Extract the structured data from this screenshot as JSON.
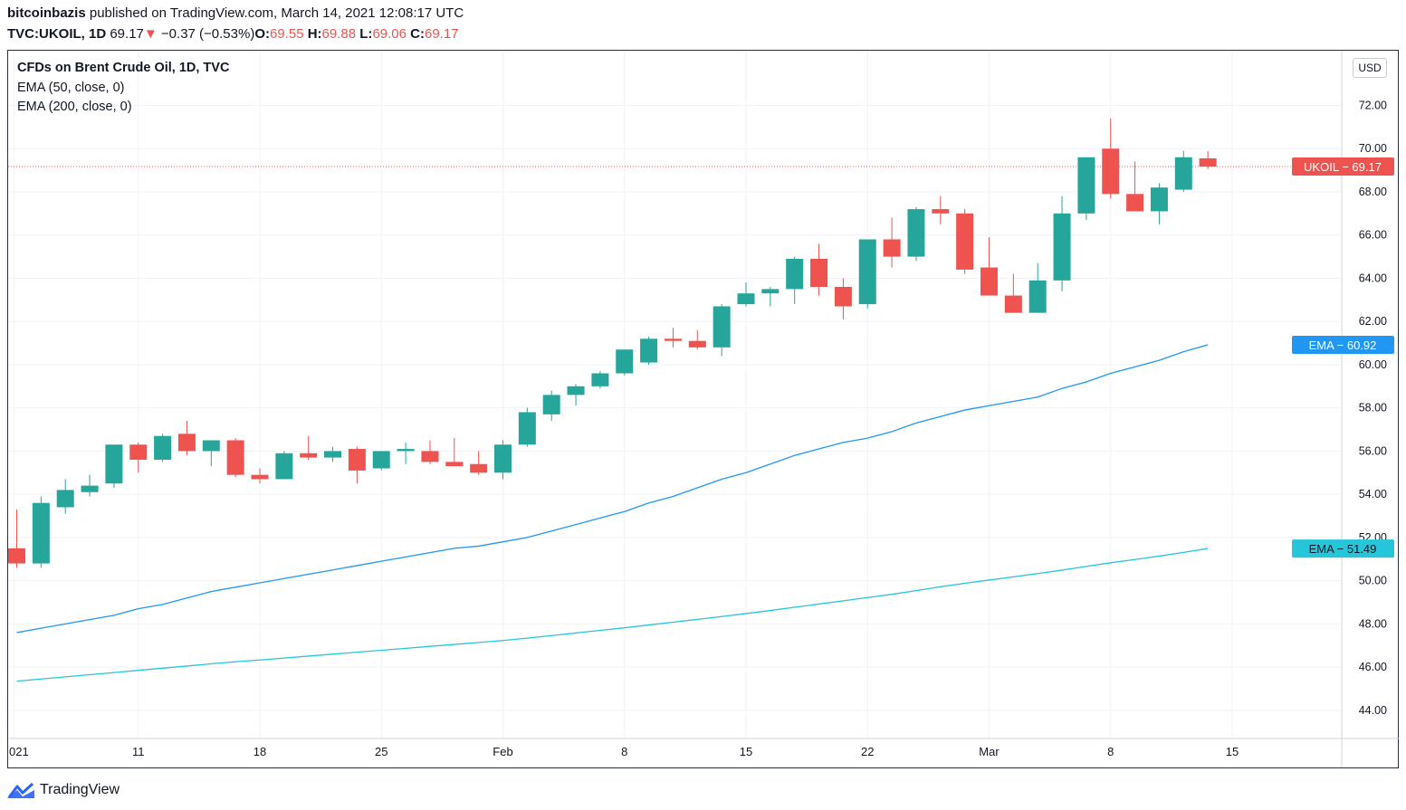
{
  "header": {
    "author": "bitcoinbazis",
    "published_text": "published on TradingView.com, March 14, 2021 12:08:17 UTC",
    "symbol": "TVC:UKOIL, 1D",
    "last": "69.17",
    "change": "−0.37 (−0.53%)",
    "o_label": "O:",
    "o_value": "69.55",
    "h_label": "H:",
    "h_value": "69.88",
    "l_label": "L:",
    "l_value": "69.06",
    "c_label": "C:",
    "c_value": "69.17",
    "down_arrow": "▼"
  },
  "legend": {
    "title": "CFDs on Brent Crude Oil, 1D, TVC",
    "ema50": "EMA (50, close, 0)",
    "ema200": "EMA (200, close, 0)"
  },
  "currency_button": "USD",
  "footer": {
    "brand": "TradingView"
  },
  "colors": {
    "up": "#26a69a",
    "down": "#ef5350",
    "ema50": "#2196f3",
    "ema200": "#26c6da",
    "grid": "#f0f3fa"
  },
  "chart_data": {
    "type": "candlestick",
    "symbol": "UKOIL",
    "currency": "USD",
    "y_range": [
      43.2,
      73.6
    ],
    "y_ticks": [
      "72.00",
      "70.00",
      "68.00",
      "66.00",
      "64.00",
      "62.00",
      "60.00",
      "58.00",
      "56.00",
      "54.00",
      "52.00",
      "50.00",
      "48.00",
      "46.00",
      "44.00"
    ],
    "x_ticks": [
      {
        "label": "021",
        "index": 0
      },
      {
        "label": "11",
        "index": 5
      },
      {
        "label": "18",
        "index": 10
      },
      {
        "label": "25",
        "index": 15
      },
      {
        "label": "Feb",
        "index": 20
      },
      {
        "label": "8",
        "index": 25
      },
      {
        "label": "15",
        "index": 30
      },
      {
        "label": "22",
        "index": 35
      },
      {
        "label": "Mar",
        "index": 40
      },
      {
        "label": "8",
        "index": 45
      },
      {
        "label": "15",
        "index": 50
      }
    ],
    "candles": [
      {
        "o": 51.5,
        "h": 53.3,
        "l": 50.6,
        "c": 50.8
      },
      {
        "o": 50.8,
        "h": 53.9,
        "l": 50.6,
        "c": 53.6
      },
      {
        "o": 53.4,
        "h": 54.7,
        "l": 53.1,
        "c": 54.2
      },
      {
        "o": 54.1,
        "h": 54.9,
        "l": 53.9,
        "c": 54.4
      },
      {
        "o": 54.5,
        "h": 56.3,
        "l": 54.3,
        "c": 56.3
      },
      {
        "o": 56.3,
        "h": 56.4,
        "l": 55.0,
        "c": 55.6
      },
      {
        "o": 55.6,
        "h": 56.8,
        "l": 55.5,
        "c": 56.7
      },
      {
        "o": 56.8,
        "h": 57.4,
        "l": 55.8,
        "c": 56.0
      },
      {
        "o": 56.0,
        "h": 56.5,
        "l": 55.3,
        "c": 56.5
      },
      {
        "o": 56.5,
        "h": 56.6,
        "l": 54.8,
        "c": 54.9
      },
      {
        "o": 54.9,
        "h": 55.2,
        "l": 54.5,
        "c": 54.7
      },
      {
        "o": 54.7,
        "h": 56.0,
        "l": 54.7,
        "c": 55.9
      },
      {
        "o": 55.9,
        "h": 56.7,
        "l": 55.6,
        "c": 55.7
      },
      {
        "o": 55.7,
        "h": 56.2,
        "l": 55.5,
        "c": 56.0
      },
      {
        "o": 56.1,
        "h": 56.2,
        "l": 54.5,
        "c": 55.1
      },
      {
        "o": 55.2,
        "h": 56.0,
        "l": 55.1,
        "c": 56.0
      },
      {
        "o": 56.0,
        "h": 56.4,
        "l": 55.4,
        "c": 56.1
      },
      {
        "o": 56.0,
        "h": 56.5,
        "l": 55.4,
        "c": 55.5
      },
      {
        "o": 55.5,
        "h": 56.6,
        "l": 55.3,
        "c": 55.3
      },
      {
        "o": 55.4,
        "h": 56.0,
        "l": 54.9,
        "c": 55.0
      },
      {
        "o": 55.0,
        "h": 56.5,
        "l": 54.7,
        "c": 56.3
      },
      {
        "o": 56.3,
        "h": 58.0,
        "l": 56.2,
        "c": 57.8
      },
      {
        "o": 57.7,
        "h": 58.8,
        "l": 57.4,
        "c": 58.6
      },
      {
        "o": 58.6,
        "h": 59.1,
        "l": 58.1,
        "c": 59.0
      },
      {
        "o": 59.0,
        "h": 59.7,
        "l": 58.9,
        "c": 59.6
      },
      {
        "o": 59.6,
        "h": 60.7,
        "l": 59.5,
        "c": 60.7
      },
      {
        "o": 60.1,
        "h": 61.3,
        "l": 60.0,
        "c": 61.2
      },
      {
        "o": 61.2,
        "h": 61.7,
        "l": 60.8,
        "c": 61.1
      },
      {
        "o": 61.1,
        "h": 61.6,
        "l": 60.7,
        "c": 60.8
      },
      {
        "o": 60.8,
        "h": 62.8,
        "l": 60.4,
        "c": 62.7
      },
      {
        "o": 62.8,
        "h": 63.8,
        "l": 62.7,
        "c": 63.3
      },
      {
        "o": 63.3,
        "h": 63.6,
        "l": 62.7,
        "c": 63.5
      },
      {
        "o": 63.5,
        "h": 65.0,
        "l": 62.8,
        "c": 64.9
      },
      {
        "o": 64.9,
        "h": 65.6,
        "l": 63.2,
        "c": 63.6
      },
      {
        "o": 63.6,
        "h": 64.0,
        "l": 62.1,
        "c": 62.7
      },
      {
        "o": 62.8,
        "h": 65.8,
        "l": 62.6,
        "c": 65.8
      },
      {
        "o": 65.8,
        "h": 66.8,
        "l": 64.5,
        "c": 65.0
      },
      {
        "o": 65.0,
        "h": 67.3,
        "l": 64.8,
        "c": 67.2
      },
      {
        "o": 67.2,
        "h": 67.8,
        "l": 66.5,
        "c": 67.0
      },
      {
        "o": 67.0,
        "h": 67.2,
        "l": 64.2,
        "c": 64.4
      },
      {
        "o": 64.5,
        "h": 65.9,
        "l": 63.2,
        "c": 63.2
      },
      {
        "o": 63.2,
        "h": 64.2,
        "l": 62.4,
        "c": 62.4
      },
      {
        "o": 62.4,
        "h": 64.7,
        "l": 62.4,
        "c": 63.9
      },
      {
        "o": 63.9,
        "h": 67.8,
        "l": 63.4,
        "c": 67.0
      },
      {
        "o": 67.0,
        "h": 69.6,
        "l": 66.7,
        "c": 69.6
      },
      {
        "o": 70.0,
        "h": 71.4,
        "l": 67.7,
        "c": 67.9
      },
      {
        "o": 67.9,
        "h": 69.4,
        "l": 67.1,
        "c": 67.1
      },
      {
        "o": 67.1,
        "h": 68.4,
        "l": 66.5,
        "c": 68.2
      },
      {
        "o": 68.1,
        "h": 69.9,
        "l": 68.0,
        "c": 69.6
      },
      {
        "o": 69.55,
        "h": 69.88,
        "l": 69.06,
        "c": 69.17
      }
    ],
    "ema50": [
      47.6,
      47.8,
      48.0,
      48.2,
      48.4,
      48.7,
      48.9,
      49.2,
      49.5,
      49.7,
      49.9,
      50.1,
      50.3,
      50.5,
      50.7,
      50.9,
      51.1,
      51.3,
      51.5,
      51.6,
      51.8,
      52.0,
      52.3,
      52.6,
      52.9,
      53.2,
      53.6,
      53.9,
      54.3,
      54.7,
      55.0,
      55.4,
      55.8,
      56.1,
      56.4,
      56.6,
      56.9,
      57.3,
      57.6,
      57.9,
      58.1,
      58.3,
      58.5,
      58.9,
      59.2,
      59.6,
      59.9,
      60.2,
      60.6,
      60.92
    ],
    "ema200": [
      45.35,
      45.45,
      45.55,
      45.65,
      45.75,
      45.85,
      45.95,
      46.05,
      46.15,
      46.25,
      46.33,
      46.42,
      46.51,
      46.6,
      46.69,
      46.78,
      46.87,
      46.96,
      47.05,
      47.14,
      47.23,
      47.34,
      47.46,
      47.58,
      47.7,
      47.82,
      47.95,
      48.08,
      48.21,
      48.34,
      48.48,
      48.62,
      48.77,
      48.92,
      49.07,
      49.22,
      49.37,
      49.54,
      49.72,
      49.88,
      50.03,
      50.18,
      50.33,
      50.49,
      50.66,
      50.83,
      50.98,
      51.14,
      51.31,
      51.49
    ],
    "price_labels": {
      "last": "UKOIL − 69.17",
      "ema50": "EMA − 60.92",
      "ema200": "EMA − 51.49"
    }
  }
}
